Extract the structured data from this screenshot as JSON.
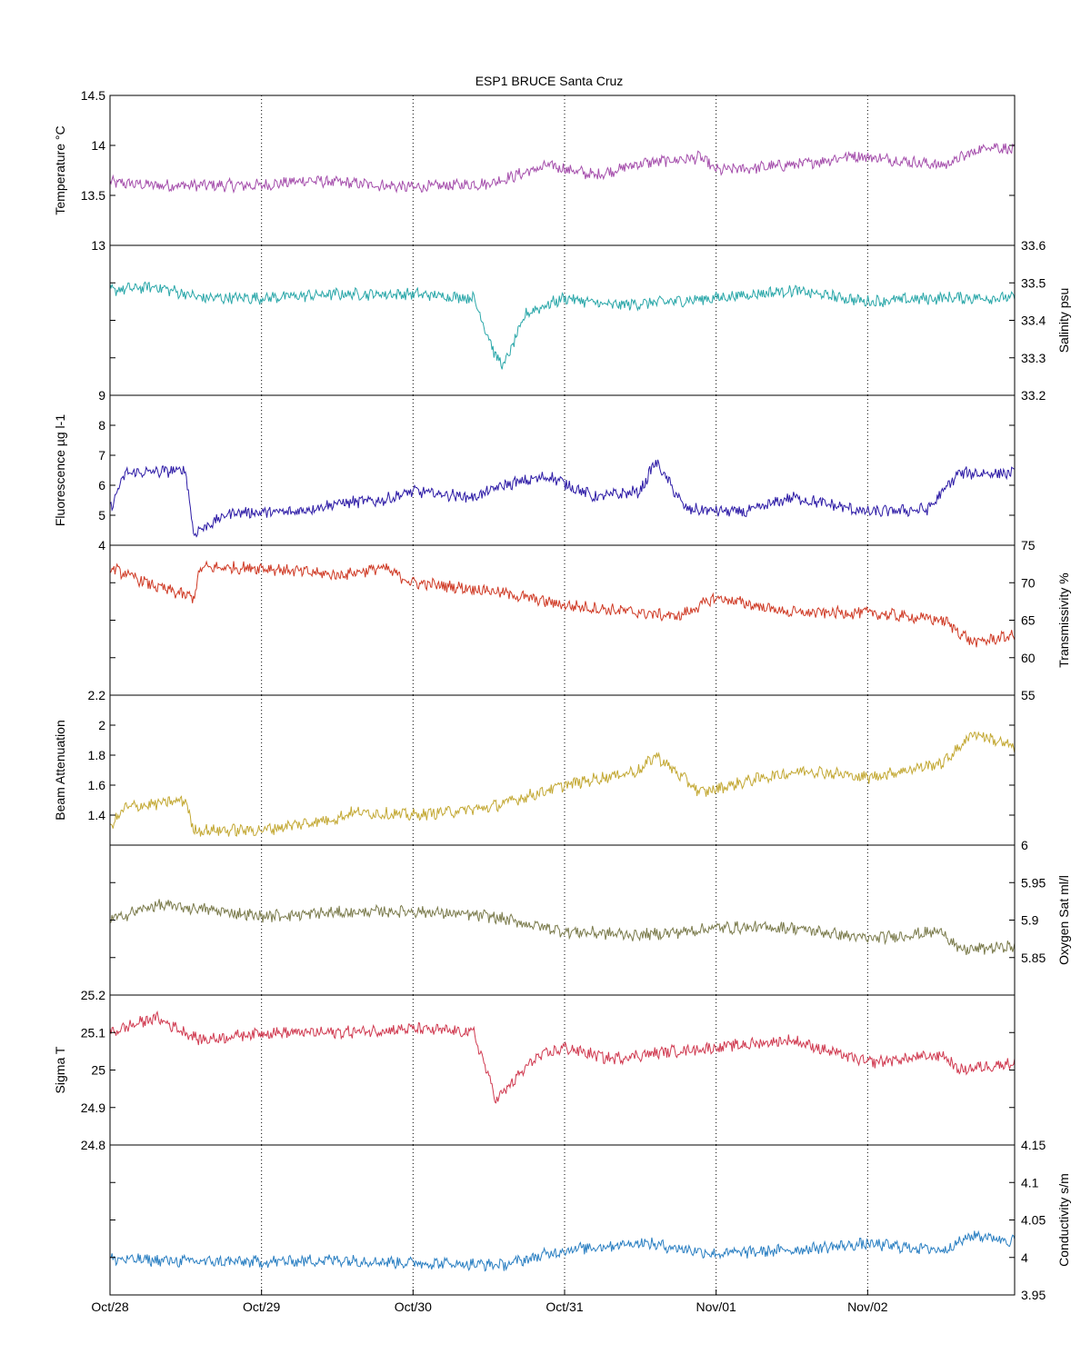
{
  "chart_data": {
    "title": "ESP1 BRUCE Santa Cruz",
    "type": "line",
    "x_tick_labels": [
      "Oct/28",
      "Oct/29",
      "Oct/30",
      "Oct/31",
      "Nov/01",
      "Nov/02"
    ],
    "x_range_days": [
      0,
      5.97
    ],
    "grid": "vertical dotted lines at each day",
    "panels": [
      {
        "ylabel": "Temperature °C",
        "axis_side": "left",
        "color": "#a54fac",
        "ylim": [
          13,
          14.5
        ],
        "ticks": [
          "14.5",
          "14",
          "13.5",
          "13"
        ],
        "series": [
          [
            0,
            13.63
          ],
          [
            0.3,
            13.6
          ],
          [
            0.6,
            13.6
          ],
          [
            1.0,
            13.6
          ],
          [
            1.3,
            13.65
          ],
          [
            1.6,
            13.62
          ],
          [
            2.0,
            13.58
          ],
          [
            2.5,
            13.62
          ],
          [
            2.9,
            13.8
          ],
          [
            3.2,
            13.7
          ],
          [
            3.5,
            13.82
          ],
          [
            3.9,
            13.88
          ],
          [
            4.0,
            13.75
          ],
          [
            4.3,
            13.78
          ],
          [
            4.6,
            13.82
          ],
          [
            4.9,
            13.9
          ],
          [
            5.2,
            13.85
          ],
          [
            5.5,
            13.8
          ],
          [
            5.8,
            14.0
          ],
          [
            5.97,
            13.95
          ]
        ]
      },
      {
        "ylabel": "Salinity psu",
        "axis_side": "right",
        "color": "#2aa7a9",
        "ylim": [
          33.2,
          33.6
        ],
        "ticks": [
          "33.6",
          "33.5",
          "33.4",
          "33.3",
          "33.2"
        ],
        "series": [
          [
            0,
            33.48
          ],
          [
            0.3,
            33.49
          ],
          [
            0.6,
            33.46
          ],
          [
            1.0,
            33.46
          ],
          [
            1.5,
            33.47
          ],
          [
            2.0,
            33.47
          ],
          [
            2.4,
            33.46
          ],
          [
            2.55,
            33.3
          ],
          [
            2.6,
            33.28
          ],
          [
            2.75,
            33.42
          ],
          [
            3.0,
            33.46
          ],
          [
            3.3,
            33.44
          ],
          [
            3.7,
            33.45
          ],
          [
            4.0,
            33.46
          ],
          [
            4.5,
            33.48
          ],
          [
            5.0,
            33.45
          ],
          [
            5.5,
            33.46
          ],
          [
            5.97,
            33.46
          ]
        ]
      },
      {
        "ylabel": "Fluorescence µg l-1",
        "axis_side": "left",
        "color": "#2d1ba6",
        "ylim": [
          4,
          9
        ],
        "ticks": [
          "9",
          "8",
          "7",
          "6",
          "5",
          "4"
        ],
        "series": [
          [
            0,
            5.2
          ],
          [
            0.1,
            6.4
          ],
          [
            0.5,
            6.5
          ],
          [
            0.55,
            4.4
          ],
          [
            0.8,
            5.1
          ],
          [
            1.2,
            5.1
          ],
          [
            1.5,
            5.4
          ],
          [
            1.8,
            5.5
          ],
          [
            2.0,
            5.8
          ],
          [
            2.4,
            5.6
          ],
          [
            2.6,
            6.0
          ],
          [
            2.9,
            6.3
          ],
          [
            3.2,
            5.6
          ],
          [
            3.5,
            5.8
          ],
          [
            3.6,
            6.8
          ],
          [
            3.8,
            5.2
          ],
          [
            4.2,
            5.1
          ],
          [
            4.5,
            5.6
          ],
          [
            5.0,
            5.1
          ],
          [
            5.4,
            5.2
          ],
          [
            5.6,
            6.4
          ],
          [
            5.97,
            6.4
          ]
        ]
      },
      {
        "ylabel": "Transmissivity %",
        "axis_side": "right",
        "color": "#cf3a25",
        "ylim": [
          55,
          75
        ],
        "ticks": [
          "75",
          "70",
          "65",
          "60",
          "55"
        ],
        "series": [
          [
            0,
            72
          ],
          [
            0.3,
            69.5
          ],
          [
            0.55,
            68
          ],
          [
            0.6,
            72
          ],
          [
            1.0,
            72
          ],
          [
            1.5,
            71
          ],
          [
            1.8,
            72
          ],
          [
            2.0,
            70
          ],
          [
            2.5,
            69
          ],
          [
            3.0,
            67
          ],
          [
            3.5,
            66
          ],
          [
            3.75,
            65.5
          ],
          [
            4.0,
            68
          ],
          [
            4.5,
            66
          ],
          [
            5.0,
            66
          ],
          [
            5.5,
            65
          ],
          [
            5.7,
            62
          ],
          [
            5.97,
            63
          ]
        ]
      },
      {
        "ylabel": "Beam Attenuation",
        "axis_side": "left",
        "color": "#c3a833",
        "ylim": [
          1.2,
          2.2
        ],
        "ticks": [
          "2.2",
          "2",
          "1.8",
          "1.6",
          "1.4"
        ],
        "series": [
          [
            0,
            1.32
          ],
          [
            0.1,
            1.45
          ],
          [
            0.5,
            1.5
          ],
          [
            0.55,
            1.3
          ],
          [
            1.0,
            1.3
          ],
          [
            1.5,
            1.38
          ],
          [
            1.6,
            1.42
          ],
          [
            2.0,
            1.4
          ],
          [
            2.5,
            1.45
          ],
          [
            3.0,
            1.6
          ],
          [
            3.5,
            1.7
          ],
          [
            3.6,
            1.8
          ],
          [
            3.9,
            1.55
          ],
          [
            4.3,
            1.65
          ],
          [
            4.6,
            1.7
          ],
          [
            5.0,
            1.65
          ],
          [
            5.5,
            1.75
          ],
          [
            5.7,
            1.95
          ],
          [
            5.97,
            1.85
          ]
        ]
      },
      {
        "ylabel": "Oxygen Sat ml/l",
        "axis_side": "right",
        "color": "#7b7b4c",
        "ylim": [
          5.8,
          6.0
        ],
        "ticks": [
          "6",
          "5.95",
          "5.9",
          "5.85"
        ],
        "series": [
          [
            0,
            5.9
          ],
          [
            0.3,
            5.92
          ],
          [
            0.6,
            5.915
          ],
          [
            1.0,
            5.905
          ],
          [
            1.5,
            5.91
          ],
          [
            2.0,
            5.912
          ],
          [
            2.5,
            5.905
          ],
          [
            3.0,
            5.885
          ],
          [
            3.5,
            5.88
          ],
          [
            3.8,
            5.885
          ],
          [
            4.0,
            5.89
          ],
          [
            4.5,
            5.89
          ],
          [
            5.0,
            5.875
          ],
          [
            5.5,
            5.885
          ],
          [
            5.6,
            5.86
          ],
          [
            5.97,
            5.865
          ]
        ]
      },
      {
        "ylabel": "Sigma T",
        "axis_side": "left",
        "color": "#d03a50",
        "ylim": [
          24.8,
          25.2
        ],
        "ticks": [
          "25.2",
          "25.1",
          "25",
          "24.9",
          "24.8"
        ],
        "series": [
          [
            0,
            25.1
          ],
          [
            0.3,
            25.14
          ],
          [
            0.6,
            25.08
          ],
          [
            1.0,
            25.1
          ],
          [
            1.5,
            25.1
          ],
          [
            2.0,
            25.11
          ],
          [
            2.4,
            25.1
          ],
          [
            2.55,
            24.92
          ],
          [
            2.8,
            25.03
          ],
          [
            3.0,
            25.06
          ],
          [
            3.3,
            25.03
          ],
          [
            3.7,
            25.05
          ],
          [
            4.0,
            25.06
          ],
          [
            4.5,
            25.08
          ],
          [
            5.0,
            25.02
          ],
          [
            5.5,
            25.04
          ],
          [
            5.6,
            25.0
          ],
          [
            5.97,
            25.02
          ]
        ]
      },
      {
        "ylabel": "Conductivity s/m",
        "axis_side": "right",
        "color": "#2a7fc2",
        "ylim": [
          3.95,
          4.15
        ],
        "ticks": [
          "4.15",
          "4.1",
          "4.05",
          "4",
          "3.95"
        ],
        "series": [
          [
            0,
            3.998
          ],
          [
            0.5,
            3.995
          ],
          [
            1.0,
            3.994
          ],
          [
            1.5,
            3.997
          ],
          [
            2.0,
            3.993
          ],
          [
            2.6,
            3.99
          ],
          [
            3.0,
            4.01
          ],
          [
            3.5,
            4.02
          ],
          [
            4.0,
            4.005
          ],
          [
            4.5,
            4.01
          ],
          [
            5.0,
            4.018
          ],
          [
            5.5,
            4.01
          ],
          [
            5.7,
            4.03
          ],
          [
            5.97,
            4.022
          ]
        ]
      }
    ]
  }
}
